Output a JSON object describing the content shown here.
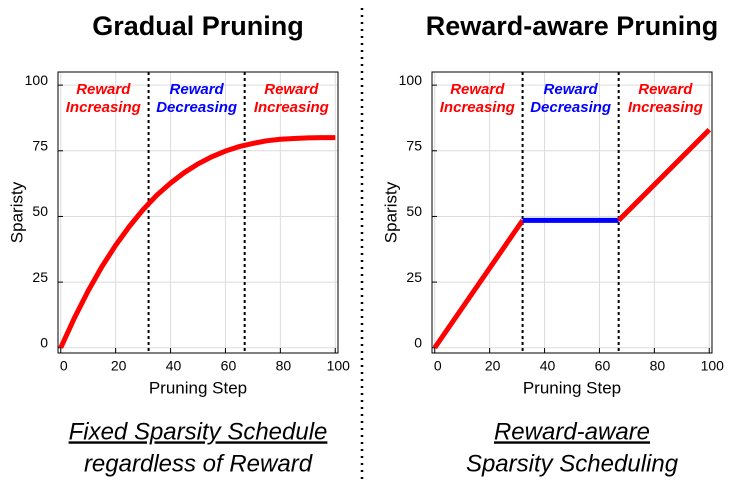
{
  "chart_data": [
    {
      "type": "line",
      "title": "Gradual Pruning",
      "xlabel": "Pruning Step",
      "ylabel": "Sparisty",
      "x": [
        0,
        5,
        10,
        15,
        20,
        25,
        30,
        35,
        40,
        45,
        50,
        55,
        60,
        65,
        70,
        75,
        80,
        85,
        90,
        95,
        100
      ],
      "series": [
        {
          "color": "#ff0000",
          "values": [
            0,
            11.4,
            21.7,
            30.9,
            39.0,
            46.2,
            52.6,
            58.1,
            62.7,
            66.7,
            70.0,
            72.7,
            74.9,
            76.6,
            77.8,
            78.8,
            79.4,
            79.7,
            79.9,
            80.0,
            80.0
          ]
        }
      ],
      "vlines": [
        32,
        67
      ],
      "annotations": [
        {
          "lines": [
            "Reward",
            "Increasing"
          ],
          "color": "#ff0000"
        },
        {
          "lines": [
            "Reward",
            "Decreasing"
          ],
          "color": "#0000ff"
        },
        {
          "lines": [
            "Reward",
            "Increasing"
          ],
          "color": "#ff0000"
        }
      ],
      "caption": [
        "Fixed Sparsity Schedule",
        "regardless of Reward"
      ],
      "caption_underline": [
        true,
        false
      ],
      "xlim": [
        -1,
        101
      ],
      "ylim": [
        -2,
        105
      ],
      "xticks": [
        0,
        20,
        40,
        60,
        80,
        100
      ],
      "yticks": [
        0,
        25,
        50,
        75,
        100
      ],
      "grid": true
    },
    {
      "type": "line",
      "title": "Reward-aware Pruning",
      "xlabel": "Pruning Step",
      "ylabel": "Sparisty",
      "x": [
        0,
        32,
        67,
        100
      ],
      "series": [
        {
          "color": "#ff0000",
          "values": [
            0,
            48.5,
            null,
            null
          ]
        },
        {
          "color": "#0000ff",
          "values": [
            null,
            48.5,
            48.5,
            null
          ]
        },
        {
          "color": "#ff0000",
          "values": [
            null,
            null,
            48.5,
            83
          ]
        }
      ],
      "vlines": [
        32,
        67
      ],
      "annotations": [
        {
          "lines": [
            "Reward",
            "Increasing"
          ],
          "color": "#ff0000"
        },
        {
          "lines": [
            "Reward",
            "Decreasing"
          ],
          "color": "#0000ff"
        },
        {
          "lines": [
            "Reward",
            "Increasing"
          ],
          "color": "#ff0000"
        }
      ],
      "caption": [
        "Reward-aware",
        "Sparsity Scheduling"
      ],
      "caption_underline": [
        true,
        false
      ],
      "xlim": [
        -1,
        101
      ],
      "ylim": [
        -2,
        105
      ],
      "xticks": [
        0,
        20,
        40,
        60,
        80,
        100
      ],
      "yticks": [
        0,
        25,
        50,
        75,
        100
      ],
      "grid": true
    }
  ]
}
